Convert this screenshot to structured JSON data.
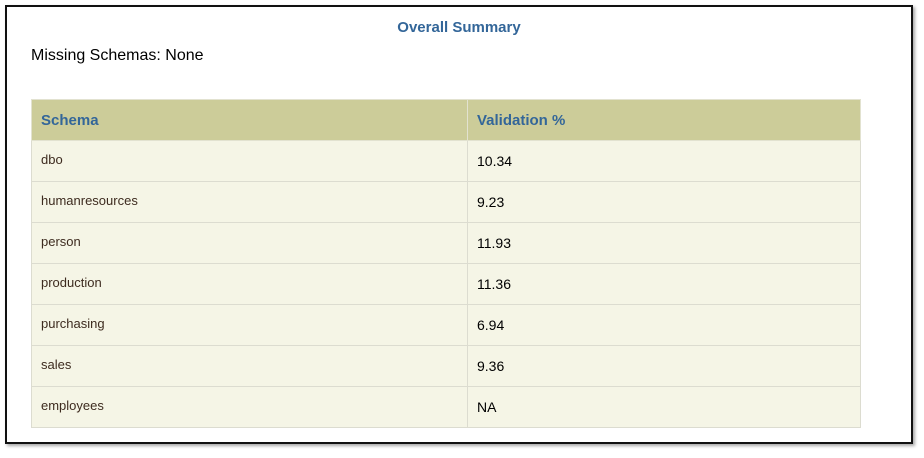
{
  "header": {
    "title": "Overall Summary",
    "missing": "Missing Schemas: None"
  },
  "table": {
    "columns": [
      "Schema",
      "Validation %"
    ],
    "rows": [
      [
        "dbo",
        "10.34"
      ],
      [
        "humanresources",
        "9.23"
      ],
      [
        "person",
        "11.93"
      ],
      [
        "production",
        "11.36"
      ],
      [
        "purchasing",
        "6.94"
      ],
      [
        "sales",
        "9.36"
      ],
      [
        "employees",
        "NA"
      ]
    ]
  }
}
